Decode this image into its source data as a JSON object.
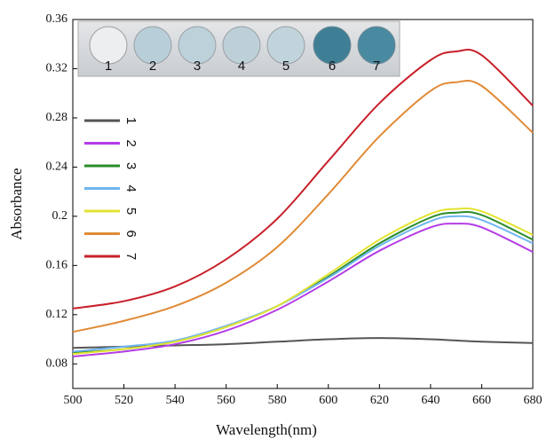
{
  "chart_data": {
    "type": "line",
    "x_label": "Wavelength(nm)",
    "y_label": "Absorbance",
    "x": [
      500,
      520,
      540,
      560,
      580,
      600,
      620,
      640,
      650,
      660,
      680
    ],
    "series": [
      {
        "name": "1",
        "color": "#555555",
        "values": [
          0.093,
          0.094,
          0.095,
          0.096,
          0.098,
          0.1,
          0.101,
          0.1,
          0.099,
          0.098,
          0.097
        ]
      },
      {
        "name": "2",
        "color": "#b43ce6",
        "values": [
          0.086,
          0.09,
          0.096,
          0.107,
          0.124,
          0.147,
          0.172,
          0.191,
          0.194,
          0.191,
          0.171
        ]
      },
      {
        "name": "3",
        "color": "#2a8c2a",
        "values": [
          0.089,
          0.092,
          0.098,
          0.11,
          0.127,
          0.151,
          0.178,
          0.199,
          0.203,
          0.201,
          0.181
        ]
      },
      {
        "name": "4",
        "color": "#6fb6f0",
        "values": [
          0.09,
          0.094,
          0.099,
          0.111,
          0.127,
          0.15,
          0.176,
          0.196,
          0.2,
          0.197,
          0.178
        ]
      },
      {
        "name": "5",
        "color": "#e3e332",
        "values": [
          0.088,
          0.092,
          0.098,
          0.11,
          0.127,
          0.153,
          0.181,
          0.202,
          0.206,
          0.204,
          0.185
        ]
      },
      {
        "name": "6",
        "color": "#e08a36",
        "values": [
          0.106,
          0.115,
          0.127,
          0.146,
          0.175,
          0.218,
          0.265,
          0.302,
          0.309,
          0.306,
          0.268
        ]
      },
      {
        "name": "7",
        "color": "#c8202a",
        "values": [
          0.125,
          0.131,
          0.143,
          0.165,
          0.198,
          0.245,
          0.292,
          0.327,
          0.334,
          0.331,
          0.29
        ]
      }
    ],
    "xlim": [
      500,
      680
    ],
    "xticks": [
      500,
      520,
      540,
      560,
      580,
      600,
      620,
      640,
      660,
      680
    ],
    "ylim": [
      0.06,
      0.36
    ],
    "yticks": [
      0.08,
      0.12,
      0.16,
      0.2,
      0.24,
      0.28,
      0.32,
      0.36
    ],
    "legend": "upper-left",
    "inset_labels": [
      "1",
      "2",
      "3",
      "4",
      "5",
      "6",
      "7"
    ]
  }
}
